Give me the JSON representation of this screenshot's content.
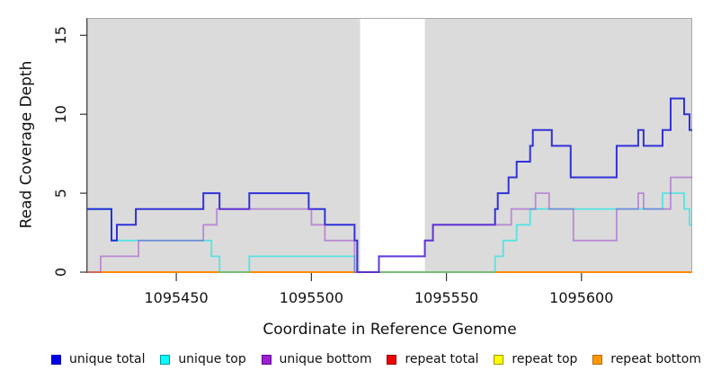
{
  "page": {
    "background": "#FFFFFF"
  },
  "chart_data": {
    "type": "line",
    "step": true,
    "title": "",
    "xlabel": "Coordinate in Reference Genome",
    "ylabel": "Read Coverage Depth",
    "xlim": [
      1095417,
      1095641
    ],
    "ylim": [
      0,
      16.1
    ],
    "x_ticks": [
      1095450,
      1095500,
      1095550,
      1095600
    ],
    "y_ticks": [
      0,
      5,
      10,
      15
    ],
    "grid": false,
    "panel_bg": "#DBDBDB",
    "band": {
      "x0": 1095518,
      "x1": 1095542,
      "color": "#FFFFFF"
    },
    "series": [
      {
        "name": "repeat total",
        "color": "#E00000",
        "opacity": 1,
        "width": 1.6,
        "points": [
          [
            1095417,
            0
          ]
        ]
      },
      {
        "name": "repeat top",
        "color": "#FFFF00",
        "opacity": 1,
        "width": 1.6,
        "points": [
          [
            1095417,
            0
          ]
        ]
      },
      {
        "name": "repeat bottom",
        "color": "#FF8C00",
        "opacity": 1,
        "width": 2,
        "points": [
          [
            1095417,
            0
          ]
        ]
      },
      {
        "name": "unique top",
        "color": "#00E6E6",
        "opacity": 0.6,
        "width": 1.8,
        "points": [
          [
            1095417,
            4
          ],
          [
            1095426,
            2
          ],
          [
            1095463,
            1
          ],
          [
            1095466,
            0
          ],
          [
            1095477,
            1
          ],
          [
            1095516,
            0
          ],
          [
            1095568,
            1
          ],
          [
            1095571,
            2
          ],
          [
            1095576,
            3
          ],
          [
            1095581,
            4
          ],
          [
            1095630,
            5
          ],
          [
            1095638,
            4
          ],
          [
            1095640,
            3
          ]
        ]
      },
      {
        "name": "unique total",
        "color": "#1414D7",
        "opacity": 0.85,
        "width": 2,
        "points": [
          [
            1095417,
            4
          ],
          [
            1095426,
            2
          ],
          [
            1095428,
            3
          ],
          [
            1095435,
            4
          ],
          [
            1095460,
            5
          ],
          [
            1095466,
            4
          ],
          [
            1095477,
            5
          ],
          [
            1095499,
            4
          ],
          [
            1095505,
            3
          ],
          [
            1095516,
            2
          ],
          [
            1095517,
            0
          ],
          [
            1095525,
            1
          ],
          [
            1095542,
            2
          ],
          [
            1095545,
            3
          ],
          [
            1095568,
            4
          ],
          [
            1095569,
            5
          ],
          [
            1095573,
            6
          ],
          [
            1095576,
            7
          ],
          [
            1095581,
            8
          ],
          [
            1095582,
            9
          ],
          [
            1095589,
            8
          ],
          [
            1095596,
            6
          ],
          [
            1095613,
            8
          ],
          [
            1095621,
            9
          ],
          [
            1095623,
            8
          ],
          [
            1095630,
            9
          ],
          [
            1095633,
            11
          ],
          [
            1095638,
            10
          ],
          [
            1095640,
            9
          ]
        ]
      },
      {
        "name": "unique bottom",
        "color": "#963CCD",
        "opacity": 0.5,
        "width": 1.8,
        "points": [
          [
            1095417,
            0
          ],
          [
            1095422,
            1
          ],
          [
            1095436,
            2
          ],
          [
            1095460,
            3
          ],
          [
            1095465,
            4
          ],
          [
            1095500,
            3
          ],
          [
            1095505,
            2
          ],
          [
            1095516,
            0
          ],
          [
            1095525,
            1
          ],
          [
            1095542,
            2
          ],
          [
            1095545,
            3
          ],
          [
            1095574,
            4
          ],
          [
            1095583,
            5
          ],
          [
            1095588,
            4
          ],
          [
            1095597,
            2
          ],
          [
            1095613,
            4
          ],
          [
            1095621,
            5
          ],
          [
            1095623,
            4
          ],
          [
            1095633,
            6
          ]
        ]
      }
    ]
  },
  "legend": {
    "items": [
      {
        "label": "unique total",
        "fill": "#0000EE",
        "border": "#0000AA"
      },
      {
        "label": "unique top",
        "fill": "#00FFFF",
        "border": "#009999"
      },
      {
        "label": "unique bottom",
        "fill": "#9922CC",
        "border": "#660099"
      },
      {
        "label": "repeat total",
        "fill": "#EE0000",
        "border": "#990000"
      },
      {
        "label": "repeat top",
        "fill": "#FFFF00",
        "border": "#999900"
      },
      {
        "label": "repeat bottom",
        "fill": "#FF9900",
        "border": "#BB6600"
      }
    ]
  }
}
